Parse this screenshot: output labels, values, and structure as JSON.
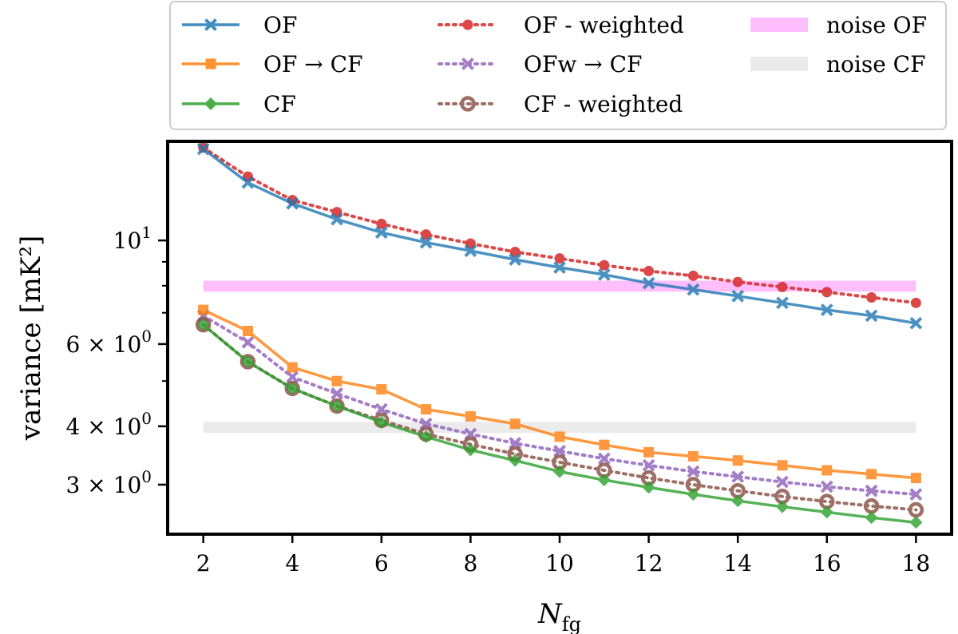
{
  "chart_data": {
    "type": "line",
    "xlabel": "N",
    "xlabel_sub": "fg",
    "ylabel": "variance [mK²]",
    "yscale": "log",
    "xlim": [
      1.2,
      18.8
    ],
    "ylim": [
      2.35,
      16.3
    ],
    "x_ticks": [
      2,
      4,
      6,
      8,
      10,
      12,
      14,
      16,
      18
    ],
    "y_ticks": [
      {
        "value": 10,
        "base": "10",
        "exp": "1"
      },
      {
        "value": 6,
        "base": "6 × 10",
        "exp": "0"
      },
      {
        "value": 4,
        "base": "4 × 10",
        "exp": "0"
      },
      {
        "value": 3,
        "base": "3 × 10",
        "exp": "0"
      }
    ],
    "x": [
      2,
      3,
      4,
      5,
      6,
      7,
      8,
      9,
      10,
      11,
      12,
      13,
      14,
      15,
      16,
      17,
      18
    ],
    "series": [
      {
        "name": "OF",
        "color": "#1f77b4",
        "marker": "x",
        "dash": "solid",
        "values": [
          15.7,
          13.3,
          12.0,
          11.1,
          10.4,
          9.9,
          9.5,
          9.1,
          8.75,
          8.45,
          8.1,
          7.85,
          7.6,
          7.35,
          7.1,
          6.9,
          6.65
        ]
      },
      {
        "name": "OF → CF",
        "color": "#ff7f0e",
        "marker": "square",
        "dash": "solid",
        "values": [
          7.1,
          6.4,
          5.35,
          5.0,
          4.8,
          4.35,
          4.2,
          4.05,
          3.8,
          3.65,
          3.52,
          3.45,
          3.38,
          3.3,
          3.22,
          3.16,
          3.1
        ]
      },
      {
        "name": "CF",
        "color": "#2ca02c",
        "marker": "diamond",
        "dash": "solid",
        "values": [
          6.6,
          5.5,
          4.82,
          4.42,
          4.08,
          3.8,
          3.56,
          3.38,
          3.2,
          3.07,
          2.96,
          2.86,
          2.77,
          2.69,
          2.62,
          2.55,
          2.49
        ]
      },
      {
        "name": "OF - weighted",
        "color": "#d62728",
        "marker": "circle",
        "dash": "dot",
        "values": [
          15.8,
          13.7,
          12.2,
          11.5,
          10.85,
          10.3,
          9.85,
          9.45,
          9.15,
          8.85,
          8.6,
          8.4,
          8.15,
          7.95,
          7.75,
          7.55,
          7.35
        ]
      },
      {
        "name": "OFw → CF",
        "color": "#9467bd",
        "marker": "x",
        "dash": "dot",
        "values": [
          6.9,
          6.05,
          5.1,
          4.7,
          4.35,
          4.05,
          3.85,
          3.68,
          3.54,
          3.41,
          3.3,
          3.2,
          3.12,
          3.04,
          2.97,
          2.91,
          2.86
        ]
      },
      {
        "name": "CF - weighted",
        "color": "#8c564b",
        "marker": "ring",
        "dash": "dot",
        "values": [
          6.6,
          5.5,
          4.82,
          4.42,
          4.12,
          3.85,
          3.66,
          3.49,
          3.35,
          3.22,
          3.1,
          3.0,
          2.91,
          2.83,
          2.76,
          2.7,
          2.65
        ]
      }
    ],
    "bands": [
      {
        "name": "noise OF",
        "color": "#ff00ff",
        "opacity": 0.25,
        "x": [
          2,
          18
        ],
        "y": [
          7.77,
          8.2
        ]
      },
      {
        "name": "noise CF",
        "color": "#999999",
        "opacity": 0.2,
        "x": [
          2,
          18
        ],
        "y": [
          3.87,
          4.09
        ]
      }
    ],
    "legend": {
      "placement": "top-center",
      "columns": 3,
      "entries": [
        "OF",
        "OF → CF",
        "CF",
        "OF - weighted",
        "OFw → CF",
        "CF - weighted",
        "noise OF",
        "noise CF"
      ]
    }
  }
}
